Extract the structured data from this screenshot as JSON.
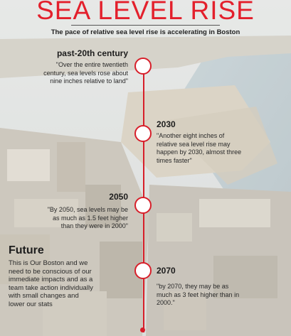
{
  "header": {
    "title": "SEA LEVEL RISE",
    "subtitle": "The pace of relative sea level rise is accelerating in Boston"
  },
  "milestones": [
    {
      "label": "past-20th century",
      "text": "\"Over the entire twentieth century, sea levels rose about nine inches relative to land\""
    },
    {
      "label": "2030",
      "text": "\"Another eight inches of relative sea level rise may happen by 2030, almost three times faster\""
    },
    {
      "label": "2050",
      "text": "\"By 2050, sea levels may be as much as 1.5 feet higher than they were in 2000\""
    },
    {
      "label": "2070",
      "text": "\"by 2070, they may be as much as 3 feet higher than in 2000.\""
    }
  ],
  "future": {
    "heading": "Future",
    "text": "This is Our Boston and we need to be conscious of our immediate impacts and as a team take action individually with small changes and lower our stats"
  },
  "colors": {
    "accent": "#e3202c",
    "line": "#d71f2a"
  }
}
